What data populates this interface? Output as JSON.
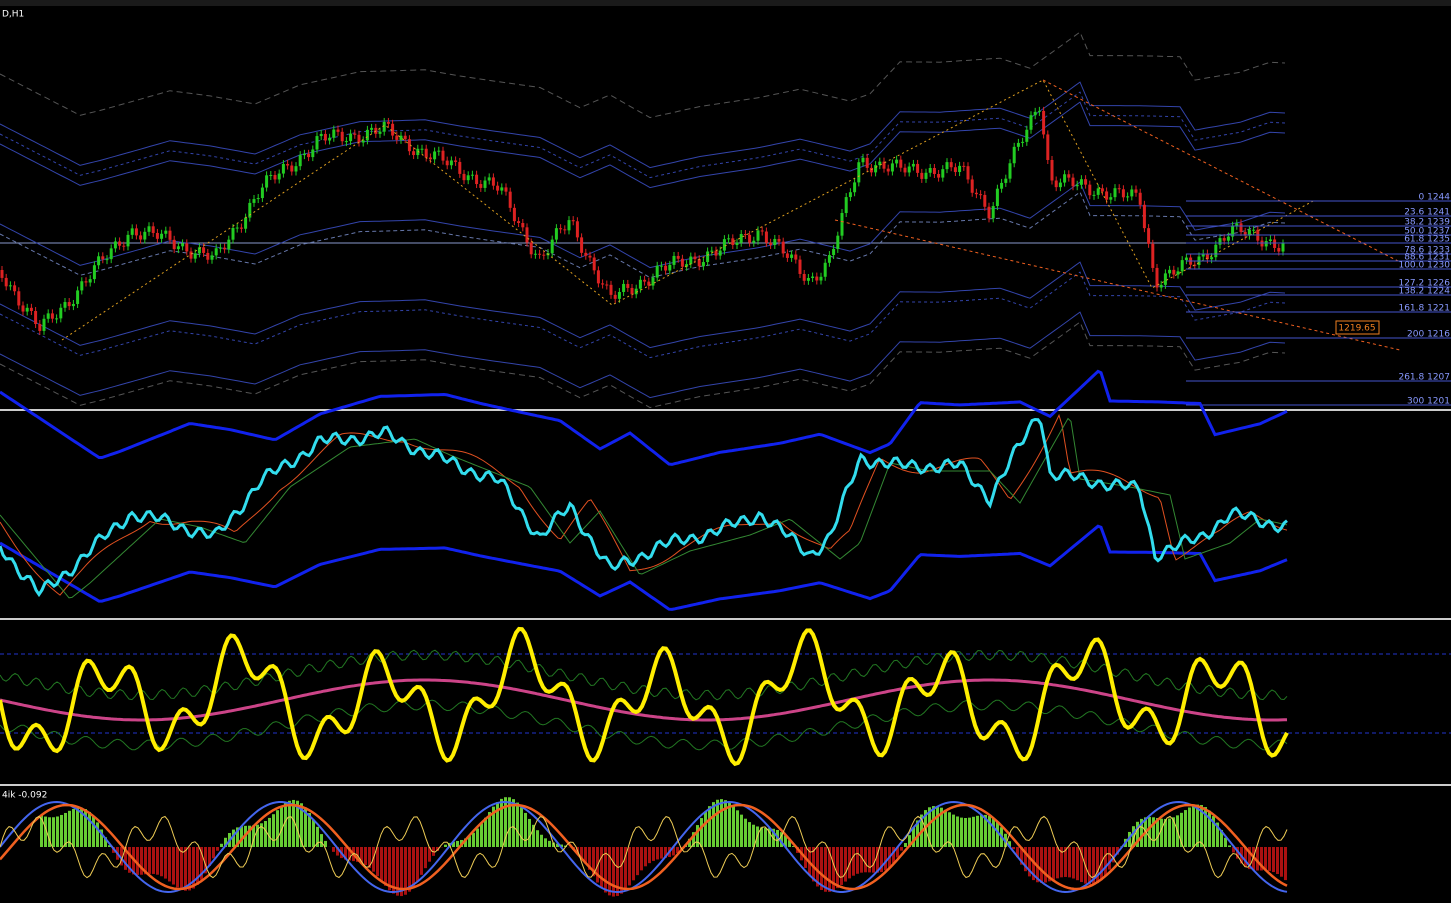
{
  "header": {
    "symbol": "D,H1"
  },
  "fibonacci": {
    "levels": [
      "0 1244",
      "23.6 1241",
      "38.2 1239",
      "50.0 1237",
      "61.8 1235",
      "78.6 1233",
      "88.6 1231",
      "100.0 1230",
      "127.2 1226",
      "138.2 1224",
      "161.8 1221",
      "200 1216",
      "261.8 1207",
      "300 1201"
    ]
  },
  "price_label": "1219.65",
  "indicator_label": "4ik -0.092"
}
